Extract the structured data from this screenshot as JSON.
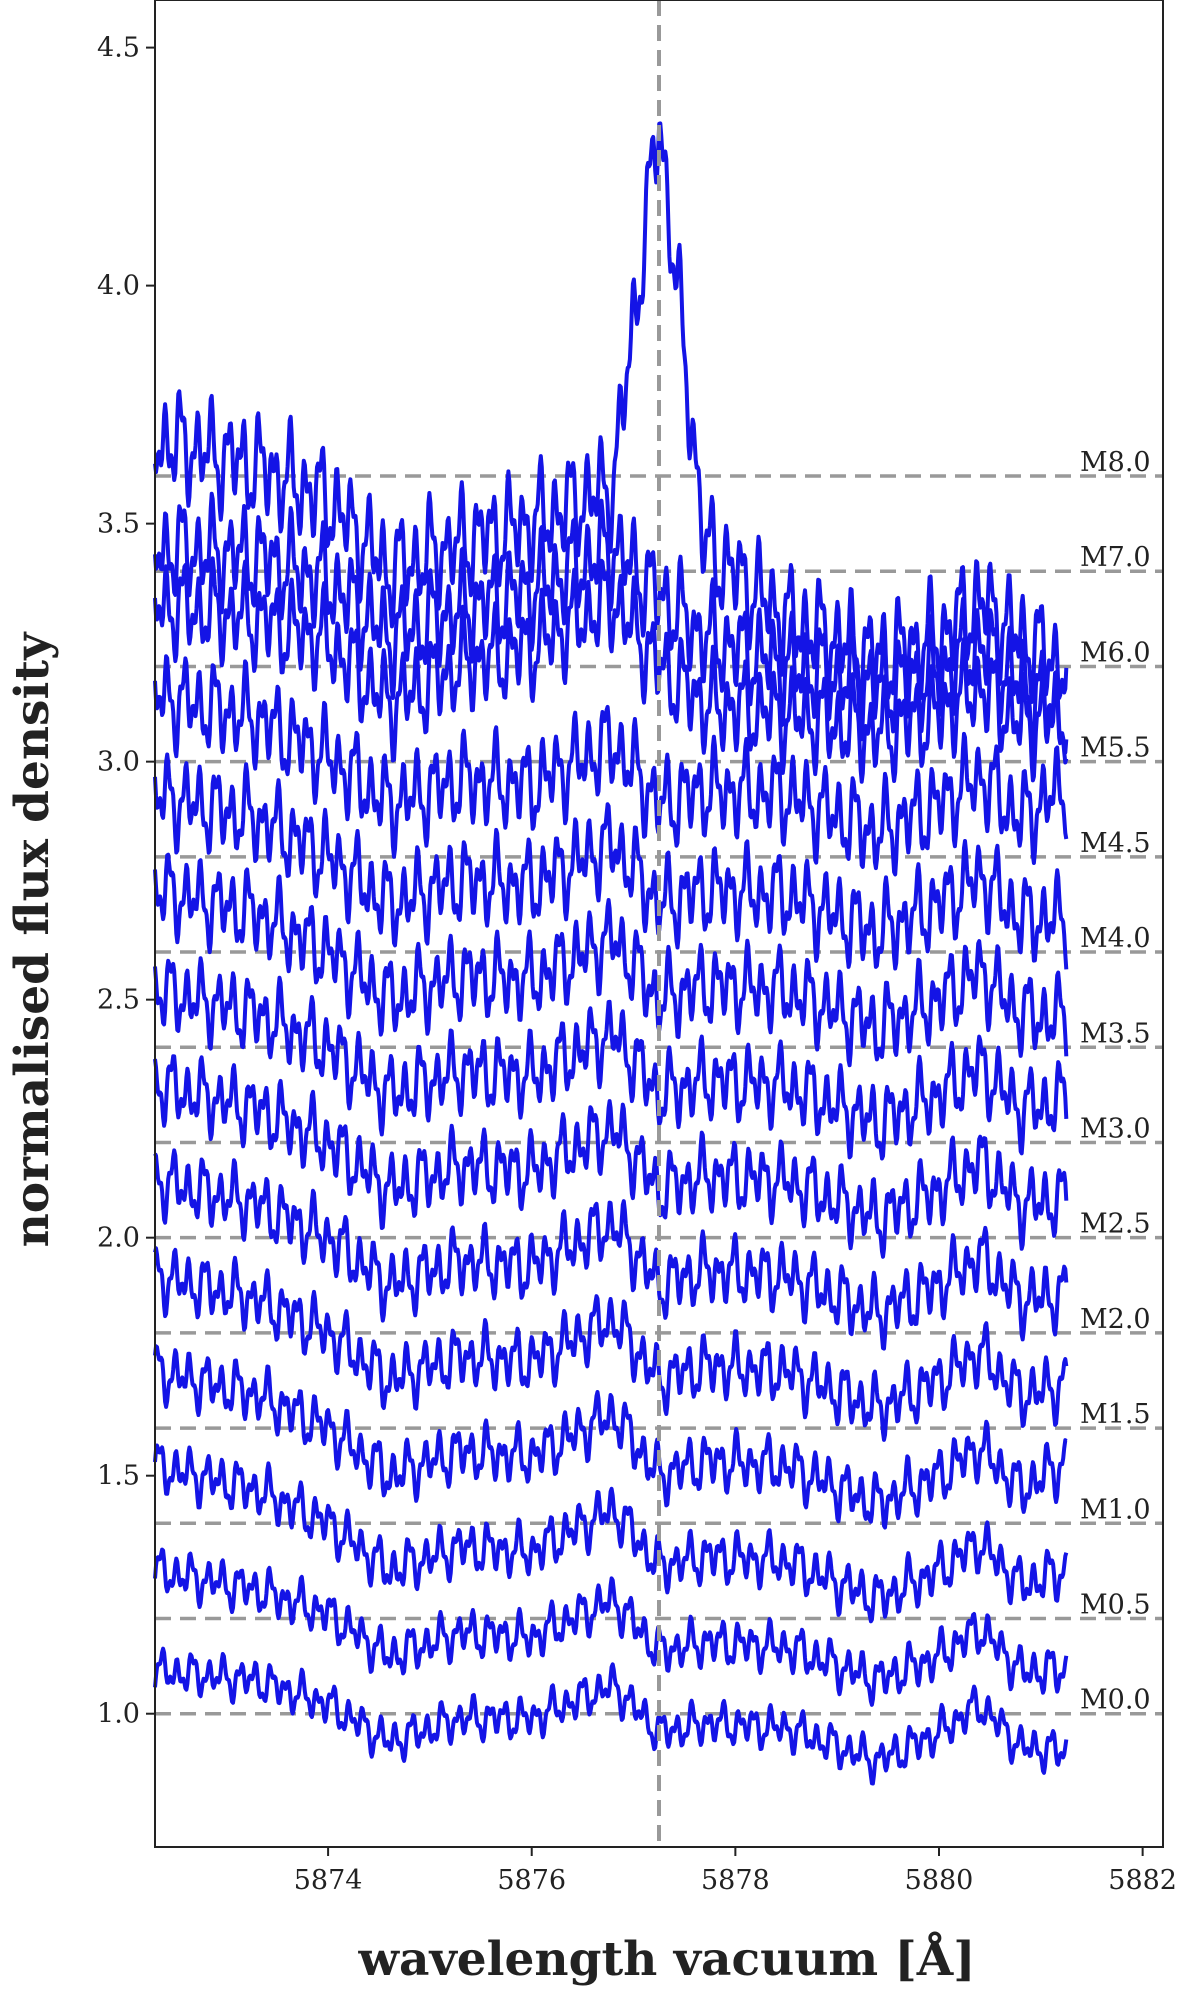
{
  "chart_data": {
    "type": "line",
    "xlabel": "wavelength vacuum [Å]",
    "ylabel": "normalised flux density",
    "xlim": [
      5872.3,
      5882.2
    ],
    "ylim": [
      0.72,
      4.6
    ],
    "x_ticks": [
      "5874",
      "5876",
      "5878",
      "5880",
      "5882"
    ],
    "y_ticks": [
      "1.0",
      "1.5",
      "2.0",
      "2.5",
      "3.0",
      "3.5",
      "4.0",
      "4.5"
    ],
    "reference_line_x": 5877.25,
    "x_range_of_spectra": [
      5872.3,
      5881.25
    ],
    "line_color": "#1414e6",
    "reference_color": "#999999",
    "series": [
      {
        "name": "M0.0",
        "offset": 1.0,
        "continuum": [
          [
            5872.3,
            1.09
          ],
          [
            5873.3,
            1.07
          ],
          [
            5874.0,
            1.02
          ],
          [
            5874.6,
            0.94
          ],
          [
            5875.3,
            0.99
          ],
          [
            5876.0,
            0.99
          ],
          [
            5876.8,
            1.06
          ],
          [
            5877.25,
            0.96
          ],
          [
            5877.7,
            0.98
          ],
          [
            5878.5,
            0.97
          ],
          [
            5879.4,
            0.9
          ],
          [
            5880.0,
            0.96
          ],
          [
            5880.4,
            1.02
          ],
          [
            5880.8,
            0.93
          ],
          [
            5881.25,
            0.92
          ]
        ]
      },
      {
        "name": "M0.5",
        "offset": 1.2,
        "continuum": [
          [
            5872.3,
            1.3
          ],
          [
            5873.3,
            1.26
          ],
          [
            5874.0,
            1.21
          ],
          [
            5874.6,
            1.12
          ],
          [
            5875.3,
            1.17
          ],
          [
            5876.0,
            1.16
          ],
          [
            5876.8,
            1.24
          ],
          [
            5877.25,
            1.13
          ],
          [
            5877.7,
            1.15
          ],
          [
            5878.5,
            1.14
          ],
          [
            5879.4,
            1.07
          ],
          [
            5880.0,
            1.12
          ],
          [
            5880.4,
            1.18
          ],
          [
            5880.8,
            1.09
          ],
          [
            5881.25,
            1.09
          ]
        ]
      },
      {
        "name": "M1.0",
        "offset": 1.4,
        "continuum": [
          [
            5872.3,
            1.52
          ],
          [
            5873.3,
            1.47
          ],
          [
            5874.0,
            1.4
          ],
          [
            5874.6,
            1.3
          ],
          [
            5875.3,
            1.35
          ],
          [
            5876.0,
            1.34
          ],
          [
            5876.8,
            1.43
          ],
          [
            5877.25,
            1.31
          ],
          [
            5877.7,
            1.33
          ],
          [
            5878.5,
            1.32
          ],
          [
            5879.4,
            1.24
          ],
          [
            5880.0,
            1.3
          ],
          [
            5880.4,
            1.36
          ],
          [
            5880.8,
            1.27
          ],
          [
            5881.25,
            1.3
          ]
        ]
      },
      {
        "name": "M1.5",
        "offset": 1.6,
        "continuum": [
          [
            5872.3,
            1.72
          ],
          [
            5873.3,
            1.67
          ],
          [
            5874.0,
            1.6
          ],
          [
            5874.6,
            1.5
          ],
          [
            5875.3,
            1.55
          ],
          [
            5876.0,
            1.54
          ],
          [
            5876.8,
            1.63
          ],
          [
            5877.25,
            1.5
          ],
          [
            5877.7,
            1.53
          ],
          [
            5878.5,
            1.52
          ],
          [
            5879.4,
            1.44
          ],
          [
            5880.0,
            1.5
          ],
          [
            5880.4,
            1.56
          ],
          [
            5880.8,
            1.47
          ],
          [
            5881.25,
            1.53
          ]
        ]
      },
      {
        "name": "M2.0",
        "offset": 1.8,
        "continuum": [
          [
            5872.3,
            1.92
          ],
          [
            5873.3,
            1.87
          ],
          [
            5874.0,
            1.8
          ],
          [
            5874.6,
            1.7
          ],
          [
            5875.3,
            1.75
          ],
          [
            5876.0,
            1.74
          ],
          [
            5876.8,
            1.83
          ],
          [
            5877.25,
            1.7
          ],
          [
            5877.7,
            1.73
          ],
          [
            5878.5,
            1.72
          ],
          [
            5879.4,
            1.64
          ],
          [
            5880.0,
            1.7
          ],
          [
            5880.4,
            1.76
          ],
          [
            5880.8,
            1.67
          ],
          [
            5881.25,
            1.69
          ]
        ]
      },
      {
        "name": "M2.5",
        "offset": 2.0,
        "continuum": [
          [
            5872.3,
            2.12
          ],
          [
            5873.3,
            2.07
          ],
          [
            5874.0,
            2.0
          ],
          [
            5874.6,
            1.9
          ],
          [
            5875.3,
            1.95
          ],
          [
            5876.0,
            1.94
          ],
          [
            5876.8,
            2.03
          ],
          [
            5877.25,
            1.9
          ],
          [
            5877.7,
            1.93
          ],
          [
            5878.5,
            1.92
          ],
          [
            5879.4,
            1.84
          ],
          [
            5880.0,
            1.9
          ],
          [
            5880.4,
            1.96
          ],
          [
            5880.8,
            1.87
          ],
          [
            5881.25,
            1.88
          ]
        ]
      },
      {
        "name": "M3.0",
        "offset": 2.2,
        "continuum": [
          [
            5872.3,
            2.32
          ],
          [
            5873.3,
            2.27
          ],
          [
            5874.0,
            2.2
          ],
          [
            5874.6,
            2.1
          ],
          [
            5875.3,
            2.15
          ],
          [
            5876.0,
            2.14
          ],
          [
            5876.8,
            2.23
          ],
          [
            5877.25,
            2.1
          ],
          [
            5877.7,
            2.13
          ],
          [
            5878.5,
            2.12
          ],
          [
            5879.4,
            2.04
          ],
          [
            5880.0,
            2.1
          ],
          [
            5880.4,
            2.16
          ],
          [
            5880.8,
            2.07
          ],
          [
            5881.25,
            2.08
          ]
        ]
      },
      {
        "name": "M3.5",
        "offset": 2.4,
        "continuum": [
          [
            5872.3,
            2.52
          ],
          [
            5873.3,
            2.47
          ],
          [
            5874.0,
            2.4
          ],
          [
            5874.6,
            2.3
          ],
          [
            5875.3,
            2.35
          ],
          [
            5876.0,
            2.34
          ],
          [
            5876.8,
            2.43
          ],
          [
            5877.25,
            2.3
          ],
          [
            5877.7,
            2.33
          ],
          [
            5878.5,
            2.32
          ],
          [
            5879.4,
            2.24
          ],
          [
            5880.0,
            2.3
          ],
          [
            5880.4,
            2.36
          ],
          [
            5880.8,
            2.27
          ],
          [
            5881.25,
            2.29
          ]
        ]
      },
      {
        "name": "M4.0",
        "offset": 2.6,
        "continuum": [
          [
            5872.3,
            2.73
          ],
          [
            5873.3,
            2.68
          ],
          [
            5874.0,
            2.6
          ],
          [
            5874.6,
            2.5
          ],
          [
            5875.3,
            2.55
          ],
          [
            5876.0,
            2.54
          ],
          [
            5876.8,
            2.63
          ],
          [
            5877.25,
            2.5
          ],
          [
            5877.7,
            2.53
          ],
          [
            5878.5,
            2.52
          ],
          [
            5879.4,
            2.44
          ],
          [
            5880.0,
            2.5
          ],
          [
            5880.4,
            2.56
          ],
          [
            5880.8,
            2.47
          ],
          [
            5881.25,
            2.46
          ]
        ]
      },
      {
        "name": "M4.5",
        "offset": 2.8,
        "continuum": [
          [
            5872.3,
            2.93
          ],
          [
            5873.3,
            2.88
          ],
          [
            5874.0,
            2.8
          ],
          [
            5874.6,
            2.7
          ],
          [
            5875.3,
            2.75
          ],
          [
            5876.0,
            2.74
          ],
          [
            5876.8,
            2.83
          ],
          [
            5877.25,
            2.7
          ],
          [
            5877.7,
            2.73
          ],
          [
            5878.5,
            2.72
          ],
          [
            5879.4,
            2.64
          ],
          [
            5880.0,
            2.7
          ],
          [
            5880.4,
            2.76
          ],
          [
            5880.8,
            2.67
          ],
          [
            5881.25,
            2.67
          ]
        ]
      },
      {
        "name": "M5.5",
        "offset": 3.0,
        "continuum": [
          [
            5872.3,
            3.14
          ],
          [
            5873.3,
            3.09
          ],
          [
            5874.0,
            3.01
          ],
          [
            5874.6,
            2.91
          ],
          [
            5875.3,
            2.96
          ],
          [
            5876.0,
            2.95
          ],
          [
            5876.8,
            3.04
          ],
          [
            5877.25,
            2.91
          ],
          [
            5877.7,
            2.94
          ],
          [
            5878.5,
            2.93
          ],
          [
            5879.4,
            2.85
          ],
          [
            5880.0,
            2.91
          ],
          [
            5880.4,
            2.97
          ],
          [
            5880.8,
            2.88
          ],
          [
            5881.25,
            2.95
          ]
        ]
      },
      {
        "name": "M6.0",
        "offset": 3.2,
        "continuum": [
          [
            5872.3,
            3.33
          ],
          [
            5873.3,
            3.3
          ],
          [
            5874.0,
            3.25
          ],
          [
            5874.6,
            3.12
          ],
          [
            5875.3,
            3.2
          ],
          [
            5876.0,
            3.24
          ],
          [
            5876.8,
            3.34
          ],
          [
            5877.25,
            3.2
          ],
          [
            5877.7,
            3.12
          ],
          [
            5878.5,
            3.1
          ],
          [
            5879.4,
            3.06
          ],
          [
            5880.0,
            3.1
          ],
          [
            5880.4,
            3.16
          ],
          [
            5880.8,
            3.08
          ],
          [
            5881.25,
            3.1
          ]
        ]
      },
      {
        "name": "M7.0",
        "offset": 3.4,
        "continuum": [
          [
            5872.3,
            3.45
          ],
          [
            5873.3,
            3.43
          ],
          [
            5874.0,
            3.38
          ],
          [
            5874.6,
            3.26
          ],
          [
            5875.3,
            3.32
          ],
          [
            5876.0,
            3.36
          ],
          [
            5876.8,
            3.45
          ],
          [
            5877.25,
            3.35
          ],
          [
            5877.7,
            3.26
          ],
          [
            5878.5,
            3.2
          ],
          [
            5879.4,
            3.16
          ],
          [
            5880.0,
            3.18
          ],
          [
            5880.4,
            3.25
          ],
          [
            5880.8,
            3.16
          ],
          [
            5881.25,
            3.1
          ]
        ]
      },
      {
        "name": "M8.0",
        "offset": 3.6,
        "continuum": [
          [
            5872.3,
            3.68
          ],
          [
            5873.3,
            3.62
          ],
          [
            5874.0,
            3.55
          ],
          [
            5874.6,
            3.4
          ],
          [
            5875.3,
            3.46
          ],
          [
            5876.0,
            3.5
          ],
          [
            5876.8,
            3.58
          ],
          [
            5877.25,
            4.35
          ],
          [
            5877.7,
            3.45
          ],
          [
            5878.5,
            3.3
          ],
          [
            5879.4,
            3.22
          ],
          [
            5880.0,
            3.26
          ],
          [
            5880.4,
            3.34
          ],
          [
            5880.8,
            3.26
          ],
          [
            5881.25,
            3.2
          ]
        ]
      }
    ]
  }
}
